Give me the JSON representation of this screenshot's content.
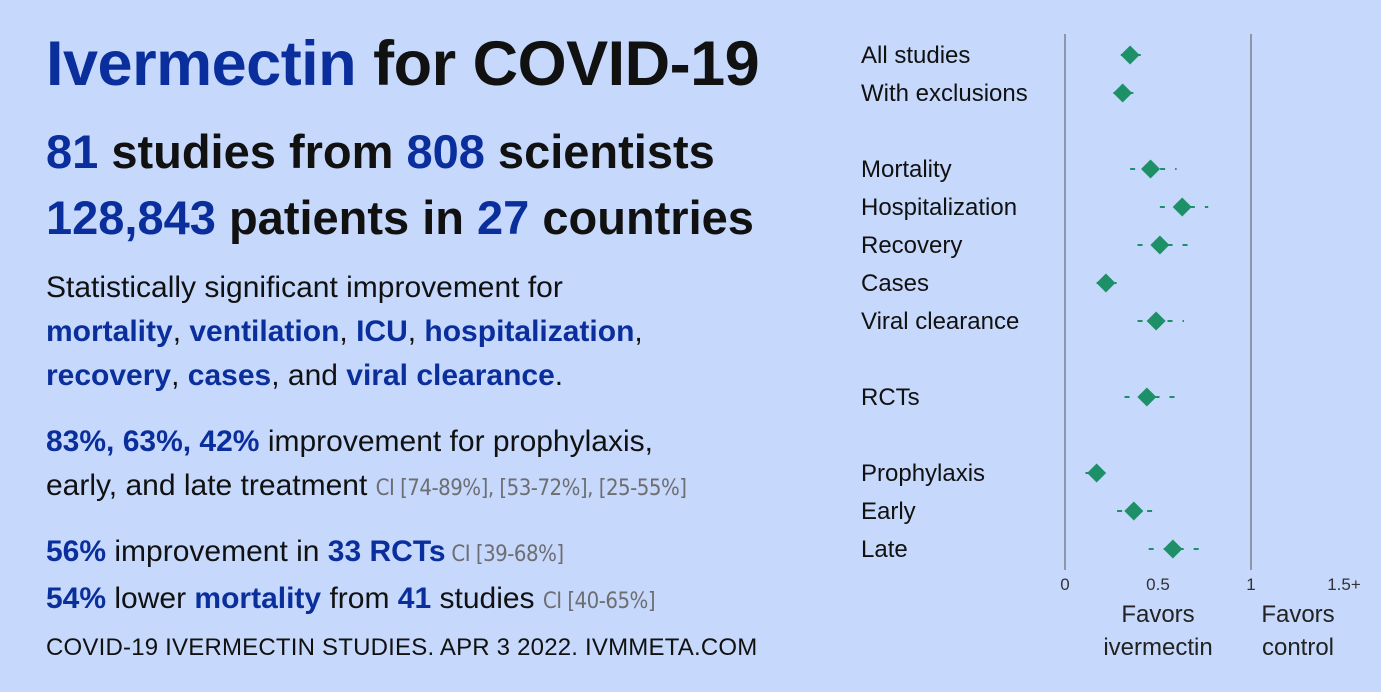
{
  "header": {
    "title_hl": "Ivermectin",
    "title_rest": " for COVID-19",
    "line1": {
      "n_studies": "81",
      "t1": " studies from ",
      "n_scientists": "808",
      "t2": " scientists"
    },
    "line2": {
      "n_patients": "128,843",
      "t1": " patients in ",
      "n_countries": "27",
      "t2": " countries"
    }
  },
  "significance": {
    "intro": "Statistically significant improvement for",
    "items": [
      "mortality",
      "ventilation",
      "ICU",
      "hospitalization",
      "recovery",
      "cases",
      "viral clearance"
    ],
    "sep": ", ",
    "and": "and ",
    "end": "."
  },
  "improvement": {
    "values": "83%, 63%, 42%",
    "text1": " improvement for prophylaxis,",
    "text2": "early, and late treatment ",
    "ci": "CI [74-89%], [53-72%], [25-55%]"
  },
  "rct_line": {
    "pct": "56%",
    "text": " improvement in ",
    "rcts": "33 RCTs",
    "ci": " CI [39-68%]"
  },
  "mortality_line": {
    "pct": "54%",
    "text1": " lower ",
    "mort": "mortality",
    "text2": " from ",
    "n": "41",
    "text3": " studies ",
    "ci": "CI [40-65%]"
  },
  "footer": "COVID-19 IVERMECTIN STUDIES. APR 3 2022. IVMMETA.COM",
  "colors": {
    "accent": "#0a2f9c",
    "marker": "#1e9068",
    "ci": "#6e6e72",
    "background": "#c6d8fb"
  },
  "chart_data": {
    "type": "scatter",
    "subtype": "forest-plot",
    "series": [
      {
        "values": [
          {
            "label": "All studies",
            "est": 0.35,
            "lo": 0.3,
            "hi": 0.44
          },
          {
            "label": "With exclusions",
            "est": 0.31,
            "lo": 0.26,
            "hi": 0.38
          },
          {
            "label": "Mortality",
            "est": 0.46,
            "lo": 0.35,
            "hi": 0.6
          },
          {
            "label": "Hospitalization",
            "est": 0.63,
            "lo": 0.51,
            "hi": 0.77
          },
          {
            "label": "Recovery",
            "est": 0.51,
            "lo": 0.39,
            "hi": 0.67
          },
          {
            "label": "Cases",
            "est": 0.22,
            "lo": 0.17,
            "hi": 0.33
          },
          {
            "label": "Viral clearance",
            "est": 0.49,
            "lo": 0.39,
            "hi": 0.64
          },
          {
            "label": "RCTs",
            "est": 0.44,
            "lo": 0.32,
            "hi": 0.62
          },
          {
            "label": "Prophylaxis",
            "est": 0.17,
            "lo": 0.11,
            "hi": 0.26
          },
          {
            "label": "Early",
            "est": 0.37,
            "lo": 0.28,
            "hi": 0.47
          },
          {
            "label": "Late",
            "est": 0.58,
            "lo": 0.45,
            "hi": 0.76
          }
        ]
      }
    ],
    "groups": [
      [
        0,
        1
      ],
      [
        2,
        3,
        4,
        5,
        6
      ],
      [
        7
      ],
      [
        8,
        9,
        10
      ]
    ],
    "xticks": [
      "0",
      "0.5",
      "1",
      "1.5+"
    ],
    "xlim": [
      0,
      1.5
    ],
    "ref_lines": [
      0,
      1
    ],
    "favor_left": "Favors\nivermectin",
    "favor_right": "Favors\ncontrol"
  }
}
